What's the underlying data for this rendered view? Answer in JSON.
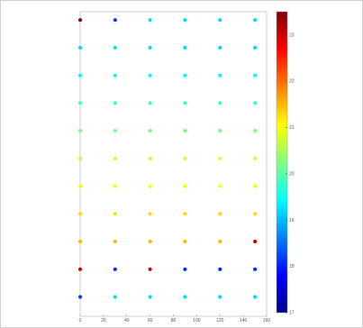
{
  "chart_data": {
    "type": "scatter",
    "title": "",
    "xlabel": "",
    "ylabel": "",
    "xlim": [
      0,
      160
    ],
    "ylim": [
      0,
      11
    ],
    "xticks": [
      0,
      20,
      40,
      60,
      80,
      100,
      120,
      140,
      160
    ],
    "grid": false,
    "colorbar": {
      "range": [
        17,
        23.5
      ],
      "tick_values": [
        17,
        18,
        19,
        20,
        21,
        22,
        23
      ],
      "colormap": "jet"
    },
    "x": [
      0,
      30,
      60,
      90,
      120,
      150
    ],
    "rows": [
      {
        "y": 10.7,
        "values": [
          23.3,
          18.2,
          19.2,
          19.2,
          19.2,
          19.2
        ]
      },
      {
        "y": 9.7,
        "values": [
          19.2,
          19.2,
          19.2,
          19.2,
          19.2,
          19.2
        ]
      },
      {
        "y": 8.7,
        "values": [
          19.4,
          19.4,
          19.4,
          19.4,
          19.4,
          19.4
        ]
      },
      {
        "y": 7.7,
        "values": [
          19.8,
          19.8,
          19.8,
          19.8,
          19.8,
          19.8
        ]
      },
      {
        "y": 6.7,
        "values": [
          20.2,
          20.2,
          20.2,
          20.2,
          20.2,
          20.2
        ]
      },
      {
        "y": 5.7,
        "values": [
          20.7,
          20.8,
          20.8,
          20.8,
          20.8,
          20.8
        ]
      },
      {
        "y": 4.7,
        "values": [
          21.0,
          21.0,
          21.0,
          21.0,
          21.0,
          21.0
        ]
      },
      {
        "y": 3.7,
        "values": [
          21.3,
          21.3,
          21.3,
          21.3,
          21.3,
          21.3
        ]
      },
      {
        "y": 2.7,
        "values": [
          21.5,
          21.5,
          21.5,
          21.5,
          21.5,
          22.9
        ]
      },
      {
        "y": 1.7,
        "values": [
          22.9,
          18.1,
          22.9,
          18.1,
          18.1,
          18.1
        ]
      },
      {
        "y": 0.7,
        "values": [
          18.2,
          19.2,
          19.2,
          19.2,
          19.2,
          19.2
        ]
      }
    ]
  }
}
